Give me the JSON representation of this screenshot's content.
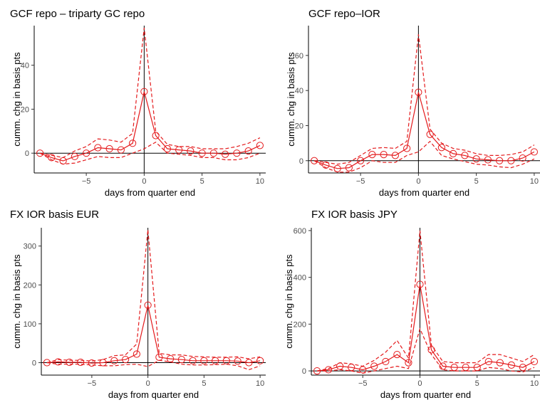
{
  "chart_data": [
    {
      "type": "line",
      "title": "GCF repo – triparty GC repo",
      "xlabel": "days from quarter end",
      "ylabel": "cumm. chg in basis pts",
      "xlim": [
        -9.5,
        10.5
      ],
      "ylim": [
        -9,
        58
      ],
      "xticks": [
        -5,
        0,
        5,
        10
      ],
      "yticks": [
        0,
        20,
        40
      ],
      "x": [
        -9,
        -8,
        -7,
        -6,
        -5,
        -4,
        -3,
        -2,
        -1,
        0,
        1,
        2,
        3,
        4,
        5,
        6,
        7,
        8,
        9,
        10
      ],
      "series": [
        {
          "role": "estimate",
          "values": [
            0,
            -2,
            -3.5,
            -1.5,
            0,
            2.5,
            2,
            1.5,
            4.5,
            28,
            8,
            2,
            1.5,
            1,
            0,
            0,
            -0.5,
            0,
            1,
            3.5
          ]
        },
        {
          "role": "upper",
          "values": [
            0,
            -1,
            -2,
            1,
            3,
            6.5,
            6,
            5,
            9,
            57,
            10,
            4,
            3,
            3,
            2,
            2,
            2,
            3,
            4.5,
            7
          ]
        },
        {
          "role": "lower",
          "values": [
            0,
            -3,
            -5,
            -4.5,
            -3,
            -1.5,
            -2,
            -2,
            0,
            2,
            5,
            0,
            -0.5,
            -1,
            -2,
            -2,
            -3,
            -3,
            -2,
            0
          ]
        }
      ]
    },
    {
      "type": "line",
      "title": "GCF repo–IOR",
      "xlabel": "days from quarter end",
      "ylabel": "cumm. chg in basis pts",
      "xlim": [
        -9.5,
        10.5
      ],
      "ylim": [
        -7,
        77
      ],
      "xticks": [
        -5,
        0,
        5,
        10
      ],
      "yticks": [
        0,
        20,
        40,
        60
      ],
      "x": [
        -9,
        -8,
        -7,
        -6,
        -5,
        -4,
        -3,
        -2,
        -1,
        0,
        1,
        2,
        3,
        4,
        5,
        6,
        7,
        8,
        9,
        10
      ],
      "series": [
        {
          "role": "estimate",
          "values": [
            0,
            -2.5,
            -4.5,
            -4,
            0,
            3.5,
            3.5,
            3,
            7,
            39,
            15,
            7.5,
            4,
            3,
            1,
            0.5,
            0,
            0,
            1.5,
            5
          ]
        },
        {
          "role": "upper",
          "values": [
            0,
            -1,
            -2,
            -1,
            3,
            7,
            7.5,
            7,
            11,
            72,
            18,
            10,
            7,
            6,
            4,
            3,
            3,
            3.5,
            5,
            9
          ]
        },
        {
          "role": "lower",
          "values": [
            0,
            -4,
            -6.5,
            -6.5,
            -4,
            0,
            -1,
            -1,
            3,
            5,
            11,
            3,
            1,
            -0.5,
            -2,
            -2.5,
            -3.5,
            -4,
            -2,
            1
          ]
        }
      ]
    },
    {
      "type": "line",
      "title": "FX IOR basis EUR",
      "xlabel": "days from quarter end",
      "ylabel": "cumm. chg in basis pts",
      "xlim": [
        -9.5,
        10.5
      ],
      "ylim": [
        -32,
        347
      ],
      "xticks": [
        -5,
        0,
        5,
        10
      ],
      "yticks": [
        0,
        100,
        200,
        300
      ],
      "x": [
        -9,
        -8,
        -7,
        -6,
        -5,
        -4,
        -3,
        -2,
        -1,
        0,
        1,
        2,
        3,
        4,
        5,
        6,
        7,
        8,
        9,
        10
      ],
      "series": [
        {
          "role": "estimate",
          "values": [
            0,
            2,
            1,
            1,
            -1,
            0,
            5,
            8,
            22,
            148,
            14,
            10,
            8,
            5,
            5,
            5,
            5,
            4,
            0,
            5
          ]
        },
        {
          "role": "upper",
          "values": [
            0,
            8,
            6,
            6,
            4,
            8,
            18,
            20,
            48,
            342,
            24,
            20,
            20,
            16,
            15,
            14,
            14,
            15,
            10,
            15
          ]
        },
        {
          "role": "lower",
          "values": [
            0,
            -4,
            -4,
            -4,
            -6,
            -8,
            -8,
            -5,
            -4,
            -10,
            6,
            2,
            -4,
            -6,
            -6,
            -5,
            -4,
            -8,
            -18,
            -8
          ]
        }
      ]
    },
    {
      "type": "line",
      "title": "FX IOR basis JPY",
      "xlabel": "days from quarter end",
      "ylabel": "cumm. chg in basis pts",
      "xlim": [
        -9.5,
        10.5
      ],
      "ylim": [
        -18,
        612
      ],
      "xticks": [
        -5,
        0,
        5,
        10
      ],
      "yticks": [
        0,
        200,
        400,
        600
      ],
      "x": [
        -9,
        -8,
        -7,
        -6,
        -5,
        -4,
        -3,
        -2,
        -1,
        0,
        1,
        2,
        3,
        4,
        5,
        6,
        7,
        8,
        9,
        10
      ],
      "series": [
        {
          "role": "estimate",
          "values": [
            0,
            5,
            20,
            15,
            5,
            20,
            40,
            70,
            35,
            370,
            90,
            20,
            15,
            15,
            15,
            40,
            35,
            25,
            15,
            40
          ]
        },
        {
          "role": "upper",
          "values": [
            0,
            10,
            35,
            30,
            20,
            45,
            80,
            130,
            55,
            600,
            110,
            40,
            35,
            35,
            35,
            70,
            70,
            55,
            40,
            70
          ]
        },
        {
          "role": "lower",
          "values": [
            0,
            0,
            5,
            0,
            -10,
            0,
            10,
            20,
            10,
            180,
            70,
            5,
            0,
            0,
            0,
            15,
            10,
            0,
            -5,
            15
          ]
        }
      ]
    }
  ]
}
